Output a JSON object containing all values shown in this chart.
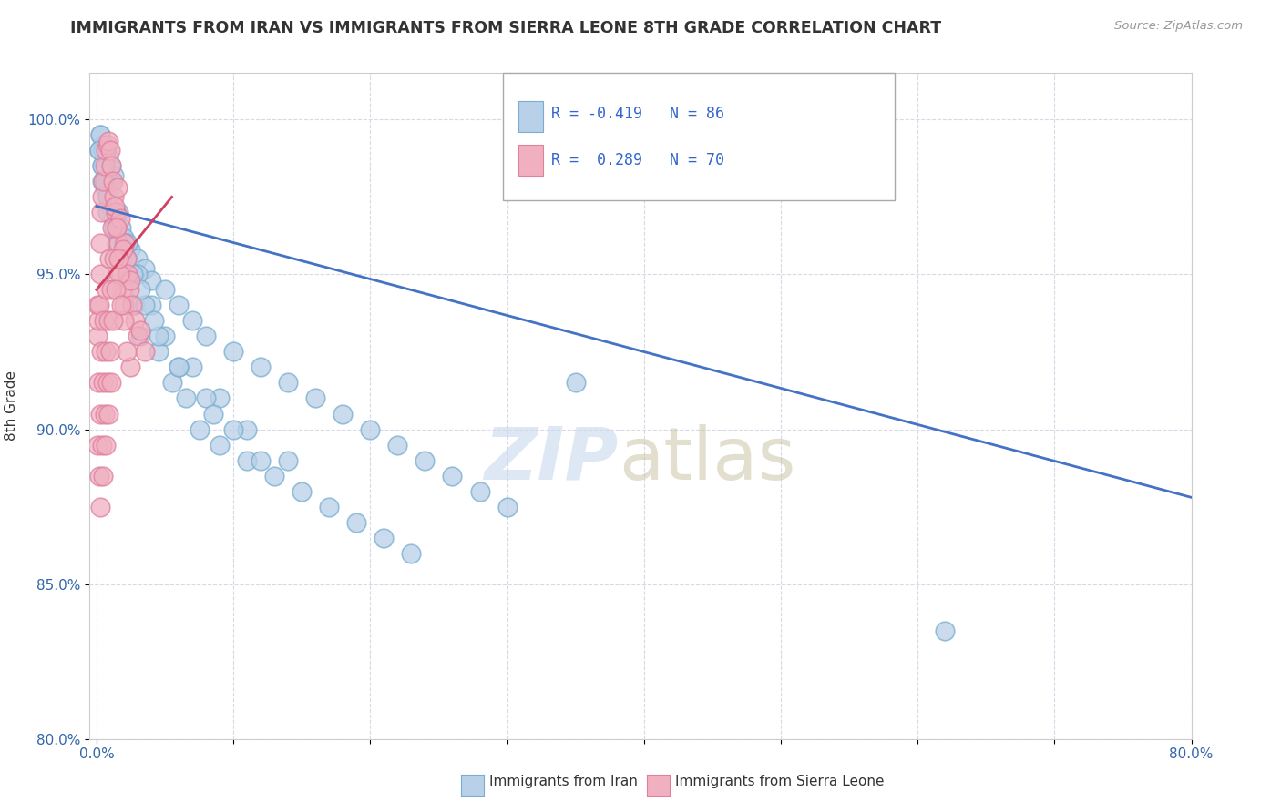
{
  "title": "IMMIGRANTS FROM IRAN VS IMMIGRANTS FROM SIERRA LEONE 8TH GRADE CORRELATION CHART",
  "source_text": "Source: ZipAtlas.com",
  "ylabel": "8th Grade",
  "xlim": [
    -0.5,
    80.0
  ],
  "ylim": [
    80.0,
    101.5
  ],
  "xticks": [
    0.0,
    10.0,
    20.0,
    30.0,
    40.0,
    50.0,
    60.0,
    70.0,
    80.0
  ],
  "xticklabels": [
    "0.0%",
    "",
    "",
    "",
    "",
    "",
    "",
    "",
    "80.0%"
  ],
  "yticks": [
    80.0,
    85.0,
    90.0,
    95.0,
    100.0
  ],
  "yticklabels": [
    "80.0%",
    "85.0%",
    "90.0%",
    "95.0%",
    "100.0%"
  ],
  "blue_fill": "#b8d0e8",
  "blue_edge": "#7aaed0",
  "pink_fill": "#f0b0c0",
  "pink_edge": "#e080a0",
  "blue_line_color": "#4472c4",
  "pink_line_color": "#d04060",
  "R_blue": -0.419,
  "N_blue": 86,
  "R_pink": 0.289,
  "N_pink": 70,
  "legend_label_blue": "Immigrants from Iran",
  "legend_label_pink": "Immigrants from Sierra Leone",
  "grid_color": "#d8d8e8",
  "blue_line_x0": 0.0,
  "blue_line_y0": 97.2,
  "blue_line_x1": 80.0,
  "blue_line_y1": 87.8,
  "pink_line_x0": 0.0,
  "pink_line_y0": 94.5,
  "pink_line_x1": 5.5,
  "pink_line_y1": 97.5,
  "blue_scatter_x": [
    0.3,
    0.5,
    0.7,
    0.9,
    1.1,
    1.3,
    0.4,
    0.6,
    0.8,
    1.0,
    1.2,
    1.8,
    2.0,
    2.5,
    3.0,
    3.5,
    4.0,
    5.0,
    6.0,
    7.0,
    8.0,
    10.0,
    12.0,
    14.0,
    16.0,
    18.0,
    20.0,
    22.0,
    24.0,
    26.0,
    28.0,
    30.0,
    0.2,
    0.4,
    0.6,
    0.8,
    1.5,
    2.2,
    2.8,
    3.2,
    4.5,
    5.5,
    6.5,
    7.5,
    9.0,
    11.0,
    13.0,
    15.0,
    17.0,
    19.0,
    21.0,
    23.0,
    0.3,
    0.7,
    1.0,
    1.6,
    2.3,
    3.0,
    4.0,
    5.0,
    7.0,
    9.0,
    11.0,
    14.0,
    0.5,
    0.9,
    1.4,
    2.0,
    2.7,
    3.5,
    4.5,
    6.0,
    8.0,
    10.0,
    12.0,
    0.4,
    0.8,
    1.3,
    2.2,
    3.2,
    4.2,
    6.0,
    8.5,
    62.0,
    0.2,
    0.6,
    35.0
  ],
  "blue_scatter_y": [
    99.5,
    99.2,
    99.0,
    98.8,
    98.5,
    98.2,
    98.0,
    97.8,
    97.5,
    97.2,
    96.8,
    96.5,
    96.2,
    95.8,
    95.5,
    95.2,
    94.8,
    94.5,
    94.0,
    93.5,
    93.0,
    92.5,
    92.0,
    91.5,
    91.0,
    90.5,
    90.0,
    89.5,
    89.0,
    88.5,
    88.0,
    87.5,
    99.0,
    98.5,
    98.0,
    97.0,
    96.0,
    95.0,
    94.0,
    93.0,
    92.5,
    91.5,
    91.0,
    90.0,
    89.5,
    89.0,
    88.5,
    88.0,
    87.5,
    87.0,
    86.5,
    86.0,
    99.5,
    98.8,
    98.0,
    97.0,
    96.0,
    95.0,
    94.0,
    93.0,
    92.0,
    91.0,
    90.0,
    89.0,
    99.0,
    98.0,
    97.0,
    96.0,
    95.0,
    94.0,
    93.0,
    92.0,
    91.0,
    90.0,
    89.0,
    98.5,
    97.5,
    96.5,
    95.5,
    94.5,
    93.5,
    92.0,
    90.5,
    83.5,
    99.0,
    98.0,
    91.5
  ],
  "pink_scatter_x": [
    0.05,
    0.1,
    0.15,
    0.2,
    0.25,
    0.3,
    0.35,
    0.4,
    0.5,
    0.6,
    0.7,
    0.8,
    0.9,
    1.0,
    1.1,
    1.2,
    1.3,
    1.4,
    1.5,
    1.6,
    1.7,
    1.8,
    1.9,
    2.0,
    2.1,
    2.2,
    2.3,
    2.4,
    2.6,
    2.8,
    3.0,
    3.5,
    0.15,
    0.35,
    0.55,
    0.75,
    0.95,
    1.15,
    1.35,
    1.55,
    1.75,
    1.95,
    2.5,
    3.2,
    0.1,
    0.3,
    0.5,
    0.7,
    0.9,
    1.1,
    1.3,
    1.5,
    1.7,
    2.0,
    2.5,
    0.2,
    0.4,
    0.6,
    0.8,
    1.0,
    1.2,
    1.4,
    1.6,
    1.8,
    2.2,
    0.25,
    0.45,
    0.65,
    0.85,
    1.05
  ],
  "pink_scatter_y": [
    94.0,
    93.0,
    93.5,
    94.0,
    95.0,
    96.0,
    97.0,
    97.5,
    98.0,
    98.5,
    99.0,
    99.2,
    99.3,
    99.0,
    98.5,
    98.0,
    97.5,
    97.0,
    96.5,
    96.0,
    95.5,
    95.0,
    94.5,
    94.0,
    96.0,
    95.5,
    95.0,
    94.5,
    94.0,
    93.5,
    93.0,
    92.5,
    91.5,
    92.5,
    93.5,
    94.5,
    95.5,
    96.5,
    97.2,
    97.8,
    96.8,
    95.8,
    94.8,
    93.2,
    89.5,
    90.5,
    91.5,
    92.5,
    93.5,
    94.5,
    95.5,
    96.5,
    95.0,
    93.5,
    92.0,
    88.5,
    89.5,
    90.5,
    91.5,
    92.5,
    93.5,
    94.5,
    95.5,
    94.0,
    92.5,
    87.5,
    88.5,
    89.5,
    90.5,
    91.5
  ]
}
